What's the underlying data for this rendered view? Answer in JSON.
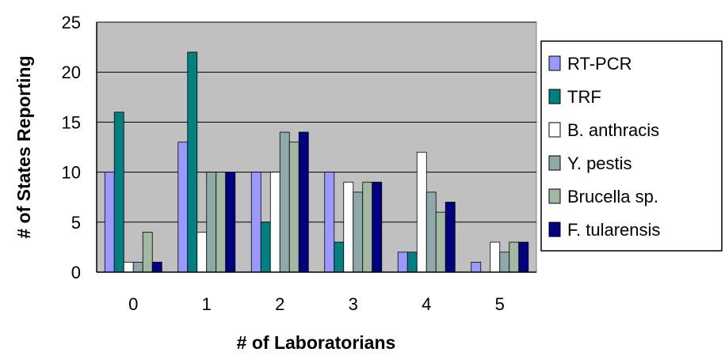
{
  "chart_data": {
    "type": "bar",
    "title": "",
    "xlabel": "# of Laboratorians",
    "ylabel": "# of States Reporting",
    "categories": [
      "0",
      "1",
      "2",
      "3",
      "4",
      "5"
    ],
    "ylim": [
      0,
      25
    ],
    "yticks": [
      "0",
      "5",
      "10",
      "15",
      "20",
      "25"
    ],
    "grid": true,
    "legend_position": "right",
    "series": [
      {
        "name": "RT-PCR",
        "color": "#9999ff",
        "values": [
          10,
          13,
          10,
          10,
          2,
          1
        ]
      },
      {
        "name": "TRF",
        "color": "#008080",
        "values": [
          16,
          22,
          5,
          3,
          2,
          0
        ]
      },
      {
        "name": "B. anthracis",
        "color": "#ffffff",
        "values": [
          1,
          4,
          10,
          9,
          12,
          3
        ]
      },
      {
        "name": "Y. pestis",
        "color": "#8fa8a8",
        "values": [
          1,
          10,
          14,
          8,
          8,
          2
        ]
      },
      {
        "name": "Brucella sp.",
        "color": "#a3b8a3",
        "values": [
          4,
          10,
          13,
          9,
          6,
          3
        ]
      },
      {
        "name": "F. tularensis",
        "color": "#000080",
        "values": [
          1,
          10,
          14,
          9,
          7,
          3
        ]
      }
    ]
  }
}
